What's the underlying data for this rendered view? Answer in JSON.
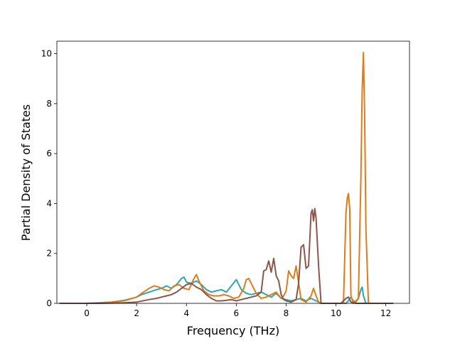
{
  "chart_data": {
    "type": "line",
    "title": "",
    "xlabel": "Frequency (THz)",
    "ylabel": "Partial Density of States",
    "xlim": [
      -1.2,
      12.95
    ],
    "ylim": [
      0,
      10.5
    ],
    "xticks": [
      0,
      2,
      4,
      6,
      8,
      10,
      12
    ],
    "yticks": [
      0,
      2,
      4,
      6,
      8,
      10
    ],
    "xtick_labels": [
      "0",
      "2",
      "4",
      "6",
      "8",
      "10",
      "12"
    ],
    "ytick_labels": [
      "0",
      "2",
      "4",
      "6",
      "8",
      "10"
    ],
    "grid": false,
    "legend": "none",
    "series": [
      {
        "color": "#2aa8b0",
        "x": [
          -1.1,
          0.0,
          0.5,
          1.0,
          1.5,
          2.0,
          2.2,
          2.5,
          2.8,
          3.0,
          3.2,
          3.4,
          3.6,
          3.8,
          3.9,
          4.0,
          4.2,
          4.4,
          4.6,
          4.8,
          5.0,
          5.2,
          5.4,
          5.6,
          5.8,
          6.0,
          6.2,
          6.4,
          6.6,
          6.8,
          7.0,
          7.2,
          7.4,
          7.6,
          7.8,
          8.0,
          8.2,
          8.4,
          8.6,
          8.8,
          9.0,
          9.2,
          9.4,
          10.4,
          10.5,
          10.6,
          10.7,
          10.8,
          10.9,
          11.0,
          11.05,
          11.1,
          11.2,
          11.3,
          12.3
        ],
        "y": [
          0.0,
          0.0,
          0.02,
          0.05,
          0.12,
          0.25,
          0.35,
          0.45,
          0.55,
          0.6,
          0.7,
          0.6,
          0.75,
          1.0,
          1.05,
          0.85,
          0.8,
          0.9,
          0.75,
          0.55,
          0.45,
          0.5,
          0.55,
          0.45,
          0.7,
          0.95,
          0.55,
          0.4,
          0.35,
          0.4,
          0.45,
          0.35,
          0.25,
          0.4,
          0.2,
          0.15,
          0.1,
          0.15,
          0.2,
          0.1,
          0.2,
          0.1,
          0.0,
          0.0,
          0.1,
          0.25,
          0.1,
          0.05,
          0.2,
          0.55,
          0.65,
          0.3,
          0.0,
          0.0,
          0.0
        ]
      },
      {
        "color": "#e07b1c",
        "x": [
          -1.1,
          0.0,
          0.5,
          1.0,
          1.5,
          2.0,
          2.2,
          2.5,
          2.7,
          2.9,
          3.1,
          3.3,
          3.5,
          3.7,
          3.9,
          4.1,
          4.3,
          4.4,
          4.5,
          4.7,
          4.9,
          5.1,
          5.3,
          5.5,
          5.7,
          5.9,
          6.1,
          6.3,
          6.4,
          6.5,
          6.6,
          6.8,
          7.0,
          7.2,
          7.4,
          7.6,
          7.8,
          7.9,
          8.0,
          8.1,
          8.2,
          8.3,
          8.4,
          8.6,
          8.8,
          9.0,
          9.1,
          9.2,
          9.3,
          9.4,
          10.3,
          10.4,
          10.45,
          10.5,
          10.55,
          10.6,
          10.7,
          10.9,
          11.0,
          11.05,
          11.1,
          11.15,
          11.2,
          11.3,
          12.3
        ],
        "y": [
          0.0,
          0.0,
          0.02,
          0.05,
          0.1,
          0.25,
          0.4,
          0.6,
          0.7,
          0.65,
          0.55,
          0.5,
          0.7,
          0.75,
          0.6,
          0.55,
          1.0,
          1.15,
          0.9,
          0.5,
          0.35,
          0.3,
          0.3,
          0.35,
          0.3,
          0.2,
          0.25,
          0.6,
          0.95,
          1.0,
          0.8,
          0.4,
          0.2,
          0.25,
          0.35,
          0.45,
          0.2,
          0.3,
          0.5,
          1.3,
          1.1,
          1.0,
          1.5,
          0.15,
          0.05,
          0.3,
          0.6,
          0.3,
          0.05,
          0.0,
          0.0,
          3.6,
          4.2,
          4.4,
          3.8,
          0.3,
          0.0,
          0.2,
          5.0,
          8.5,
          10.05,
          7.5,
          3.0,
          0.0,
          0.0
        ]
      },
      {
        "color": "#8c564b",
        "x": [
          -1.1,
          0.0,
          0.5,
          1.0,
          1.5,
          2.0,
          2.5,
          2.8,
          3.0,
          3.2,
          3.4,
          3.6,
          3.8,
          4.0,
          4.2,
          4.4,
          4.6,
          4.8,
          5.0,
          5.2,
          5.4,
          5.6,
          5.8,
          6.0,
          6.2,
          6.4,
          6.6,
          6.8,
          7.0,
          7.1,
          7.2,
          7.3,
          7.4,
          7.5,
          7.6,
          7.7,
          7.8,
          7.9,
          8.0,
          8.2,
          8.4,
          8.5,
          8.6,
          8.7,
          8.8,
          8.9,
          9.0,
          9.05,
          9.1,
          9.15,
          9.2,
          9.3,
          9.4,
          10.2,
          10.4,
          10.5,
          10.6,
          10.8,
          12.3
        ],
        "y": [
          0.0,
          0.0,
          0.0,
          0.01,
          0.02,
          0.05,
          0.15,
          0.2,
          0.25,
          0.3,
          0.35,
          0.45,
          0.6,
          0.75,
          0.8,
          0.65,
          0.55,
          0.35,
          0.2,
          0.1,
          0.1,
          0.12,
          0.15,
          0.1,
          0.15,
          0.2,
          0.25,
          0.3,
          0.45,
          1.3,
          1.35,
          1.7,
          1.25,
          1.8,
          1.1,
          0.9,
          0.35,
          0.15,
          0.1,
          0.05,
          0.15,
          0.8,
          2.25,
          2.35,
          1.4,
          1.5,
          3.6,
          3.75,
          3.3,
          3.8,
          3.4,
          1.5,
          0.0,
          0.0,
          0.2,
          0.25,
          0.05,
          0.0,
          0.0
        ]
      }
    ]
  }
}
